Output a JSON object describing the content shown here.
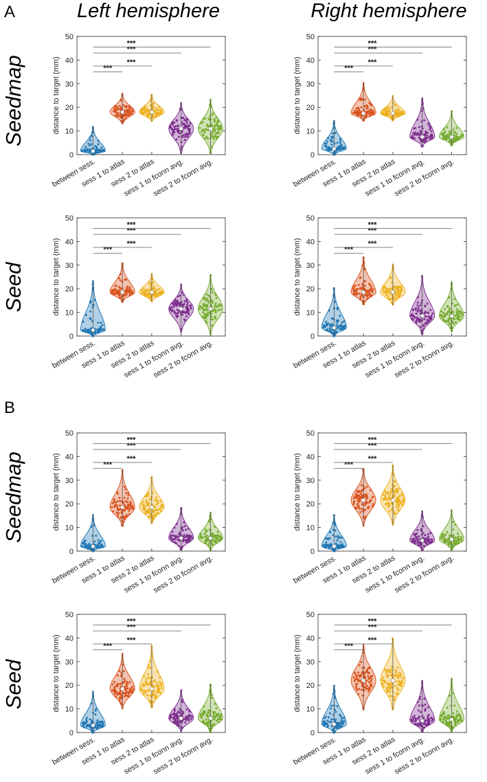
{
  "panel_letters": [
    "A",
    "B"
  ],
  "column_headers": [
    "Left hemisphere",
    "Right hemisphere"
  ],
  "row_labels": [
    "Seedmap",
    "Seed",
    "Seedmap",
    "Seed"
  ],
  "colors": {
    "between sess.": "#1f77b4",
    "sess 1 to atlas": "#d9531e",
    "sess 2 to atlas": "#edb120",
    "sess 1 to fconn avg.": "#7e2f8e",
    "sess 2 to fconn avg.": "#77ac30",
    "axis": "#262626",
    "bracket": "#808080"
  },
  "chart_data": [
    {
      "id": "A-left-seedmap",
      "type": "violin",
      "panel": "A",
      "hemisphere": "Left hemisphere",
      "method": "Seedmap",
      "ylabel": "distance to target (mm)",
      "ylim": [
        0,
        50
      ],
      "yticks": [
        0,
        10,
        20,
        30,
        40,
        50
      ],
      "categories": [
        "between sess.",
        "sess 1 to atlas",
        "sess 2 to atlas",
        "sess 1 to fconn avg.",
        "sess 2 to fconn avg."
      ],
      "medians": [
        1.5,
        18,
        18,
        11,
        11
      ],
      "ranges": [
        [
          0,
          12
        ],
        [
          13,
          26
        ],
        [
          14,
          25.5
        ],
        [
          0.5,
          22
        ],
        [
          0.5,
          23.5
        ]
      ],
      "significance": [
        {
          "from": 0,
          "to": 1,
          "label": "***"
        },
        {
          "from": 0,
          "to": 2,
          "label": "***"
        },
        {
          "from": 0,
          "to": 3,
          "label": "***"
        },
        {
          "from": 0,
          "to": 4,
          "label": "***"
        }
      ]
    },
    {
      "id": "A-right-seedmap",
      "type": "violin",
      "panel": "A",
      "hemisphere": "Right hemisphere",
      "method": "Seedmap",
      "ylabel": "distance to target (mm)",
      "ylim": [
        0,
        50
      ],
      "yticks": [
        0,
        10,
        20,
        30,
        40,
        50
      ],
      "categories": [
        "between sess.",
        "sess 1 to atlas",
        "sess 2 to atlas",
        "sess 1 to fconn avg.",
        "sess 2 to fconn avg."
      ],
      "medians": [
        2.5,
        17.5,
        17.5,
        7.5,
        7.5
      ],
      "ranges": [
        [
          0,
          14.5
        ],
        [
          14.5,
          30.5
        ],
        [
          14.5,
          25
        ],
        [
          3.5,
          24
        ],
        [
          4,
          18.5
        ]
      ],
      "significance": [
        {
          "from": 0,
          "to": 1,
          "label": "***"
        },
        {
          "from": 0,
          "to": 2,
          "label": "***"
        },
        {
          "from": 0,
          "to": 3,
          "label": "***"
        },
        {
          "from": 0,
          "to": 4,
          "label": "***"
        }
      ]
    },
    {
      "id": "A-left-seed",
      "type": "violin",
      "panel": "A",
      "hemisphere": "Left hemisphere",
      "method": "Seed",
      "ylabel": "distance to target (mm)",
      "ylim": [
        0,
        50
      ],
      "yticks": [
        0,
        10,
        20,
        30,
        40,
        50
      ],
      "categories": [
        "between sess.",
        "sess 1 to atlas",
        "sess 2 to atlas",
        "sess 1 to fconn avg.",
        "sess 2 to fconn avg."
      ],
      "medians": [
        2.5,
        18.5,
        18.5,
        11.5,
        11.5
      ],
      "ranges": [
        [
          0,
          23.5
        ],
        [
          14.5,
          31
        ],
        [
          14.5,
          26.5
        ],
        [
          1.5,
          22
        ],
        [
          0.5,
          26
        ]
      ],
      "significance": [
        {
          "from": 0,
          "to": 1,
          "label": "***"
        },
        {
          "from": 0,
          "to": 2,
          "label": "***"
        },
        {
          "from": 0,
          "to": 3,
          "label": "***"
        },
        {
          "from": 0,
          "to": 4,
          "label": "***"
        }
      ]
    },
    {
      "id": "A-right-seed",
      "type": "violin",
      "panel": "A",
      "hemisphere": "Right hemisphere",
      "method": "Seed",
      "ylabel": "distance to target (mm)",
      "ylim": [
        0,
        50
      ],
      "yticks": [
        0,
        10,
        20,
        30,
        40,
        50
      ],
      "categories": [
        "between sess.",
        "sess 1 to atlas",
        "sess 2 to atlas",
        "sess 1 to fconn avg.",
        "sess 2 to fconn avg."
      ],
      "medians": [
        3.5,
        18.5,
        18.5,
        8.5,
        8.5
      ],
      "ranges": [
        [
          0,
          20.5
        ],
        [
          13.5,
          33.5
        ],
        [
          13,
          30.5
        ],
        [
          1,
          25.5
        ],
        [
          2,
          23
        ]
      ],
      "significance": [
        {
          "from": 0,
          "to": 1,
          "label": "***"
        },
        {
          "from": 0,
          "to": 2,
          "label": "***"
        },
        {
          "from": 0,
          "to": 3,
          "label": "***"
        },
        {
          "from": 0,
          "to": 4,
          "label": "***"
        }
      ]
    },
    {
      "id": "B-left-seedmap",
      "type": "violin",
      "panel": "B",
      "hemisphere": "Left hemisphere",
      "method": "Seedmap",
      "ylabel": "distance to target (mm)",
      "ylim": [
        0,
        50
      ],
      "yticks": [
        0,
        10,
        20,
        30,
        40,
        50
      ],
      "categories": [
        "between sess.",
        "sess 1 to atlas",
        "sess 2 to atlas",
        "sess 1 to fconn avg.",
        "sess 2 to fconn avg."
      ],
      "medians": [
        2,
        18.5,
        18.5,
        5.5,
        5.5
      ],
      "ranges": [
        [
          0,
          15.5
        ],
        [
          10.5,
          34.5
        ],
        [
          11.5,
          31.5
        ],
        [
          0.5,
          18.5
        ],
        [
          0.5,
          16.5
        ]
      ],
      "significance": [
        {
          "from": 0,
          "to": 1,
          "label": "***"
        },
        {
          "from": 0,
          "to": 2,
          "label": "***"
        },
        {
          "from": 0,
          "to": 3,
          "label": "***"
        },
        {
          "from": 0,
          "to": 4,
          "label": "***"
        }
      ]
    },
    {
      "id": "B-right-seedmap",
      "type": "violin",
      "panel": "B",
      "hemisphere": "Right hemisphere",
      "method": "Seedmap",
      "ylabel": "distance to target (mm)",
      "ylim": [
        0,
        50
      ],
      "yticks": [
        0,
        10,
        20,
        30,
        40,
        50
      ],
      "categories": [
        "between sess.",
        "sess 1 to atlas",
        "sess 2 to atlas",
        "sess 1 to fconn avg.",
        "sess 2 to fconn avg."
      ],
      "medians": [
        2,
        21.5,
        21.5,
        4.5,
        5
      ],
      "ranges": [
        [
          0,
          15.5
        ],
        [
          10.5,
          35
        ],
        [
          11,
          36.5
        ],
        [
          0.5,
          17
        ],
        [
          0.5,
          17.5
        ]
      ],
      "significance": [
        {
          "from": 0,
          "to": 1,
          "label": "***"
        },
        {
          "from": 0,
          "to": 2,
          "label": "***"
        },
        {
          "from": 0,
          "to": 3,
          "label": "***"
        },
        {
          "from": 0,
          "to": 4,
          "label": "***"
        }
      ]
    },
    {
      "id": "B-left-seed",
      "type": "violin",
      "panel": "B",
      "hemisphere": "Left hemisphere",
      "method": "Seed",
      "ylabel": "distance to target (mm)",
      "ylim": [
        0,
        50
      ],
      "yticks": [
        0,
        10,
        20,
        30,
        40,
        50
      ],
      "categories": [
        "between sess.",
        "sess 1 to atlas",
        "sess 2 to atlas",
        "sess 1 to fconn avg.",
        "sess 2 to fconn avg."
      ],
      "medians": [
        3,
        18.5,
        18.5,
        6,
        6
      ],
      "ranges": [
        [
          0,
          17.5
        ],
        [
          10,
          33.5
        ],
        [
          10.5,
          37
        ],
        [
          0.5,
          18
        ],
        [
          0.5,
          20.5
        ]
      ],
      "significance": [
        {
          "from": 0,
          "to": 1,
          "label": "***"
        },
        {
          "from": 0,
          "to": 2,
          "label": "***"
        },
        {
          "from": 0,
          "to": 3,
          "label": "***"
        },
        {
          "from": 0,
          "to": 4,
          "label": "***"
        }
      ]
    },
    {
      "id": "B-right-seed",
      "type": "violin",
      "panel": "B",
      "hemisphere": "Right hemisphere",
      "method": "Seed",
      "ylabel": "distance to target (mm)",
      "ylim": [
        0,
        50
      ],
      "yticks": [
        0,
        10,
        20,
        30,
        40,
        50
      ],
      "categories": [
        "between sess.",
        "sess 1 to atlas",
        "sess 2 to atlas",
        "sess 1 to fconn avg.",
        "sess 2 to fconn avg."
      ],
      "medians": [
        3.5,
        22,
        22,
        5,
        5.5
      ],
      "ranges": [
        [
          0,
          20
        ],
        [
          9.5,
          37.5
        ],
        [
          9.5,
          40
        ],
        [
          0.5,
          22
        ],
        [
          0.5,
          23
        ]
      ],
      "significance": [
        {
          "from": 0,
          "to": 1,
          "label": "***"
        },
        {
          "from": 0,
          "to": 2,
          "label": "***"
        },
        {
          "from": 0,
          "to": 3,
          "label": "***"
        },
        {
          "from": 0,
          "to": 4,
          "label": "***"
        }
      ]
    }
  ]
}
